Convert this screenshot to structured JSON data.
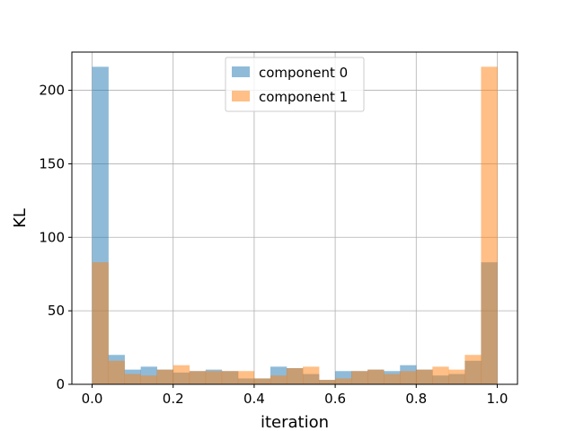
{
  "chart_data": {
    "type": "bar",
    "subtype": "overlaid-histogram",
    "title": "",
    "xlabel": "iteration",
    "ylabel": "KL",
    "xlim": [
      -0.05,
      1.05
    ],
    "ylim": [
      0,
      226
    ],
    "grid": true,
    "legend_position": "top-center",
    "bin_edges": [
      0.0,
      0.04,
      0.08,
      0.12,
      0.16,
      0.2,
      0.24,
      0.28,
      0.32,
      0.36,
      0.4,
      0.44,
      0.48,
      0.52,
      0.56,
      0.6,
      0.64,
      0.68,
      0.72,
      0.76,
      0.8,
      0.84,
      0.88,
      0.92,
      0.96,
      1.0
    ],
    "x_ticks": [
      0.0,
      0.2,
      0.4,
      0.6,
      0.8,
      1.0
    ],
    "x_tick_labels": [
      "0.0",
      "0.2",
      "0.4",
      "0.6",
      "0.8",
      "1.0"
    ],
    "y_ticks": [
      0,
      50,
      100,
      150,
      200
    ],
    "y_tick_labels": [
      "0",
      "50",
      "100",
      "150",
      "200"
    ],
    "series": [
      {
        "name": "component 0",
        "color": "#1f77b4",
        "opacity": 0.5,
        "values": [
          216,
          20,
          10,
          12,
          10,
          8,
          9,
          10,
          9,
          4,
          4,
          12,
          11,
          7,
          3,
          9,
          9,
          10,
          9,
          13,
          10,
          6,
          7,
          16,
          83
        ]
      },
      {
        "name": "component 1",
        "color": "#ff7f0e",
        "opacity": 0.5,
        "values": [
          83,
          16,
          7,
          6,
          10,
          13,
          9,
          9,
          9,
          9,
          4,
          6,
          11,
          12,
          3,
          4,
          9,
          10,
          7,
          9,
          10,
          12,
          10,
          20,
          216
        ]
      }
    ]
  }
}
